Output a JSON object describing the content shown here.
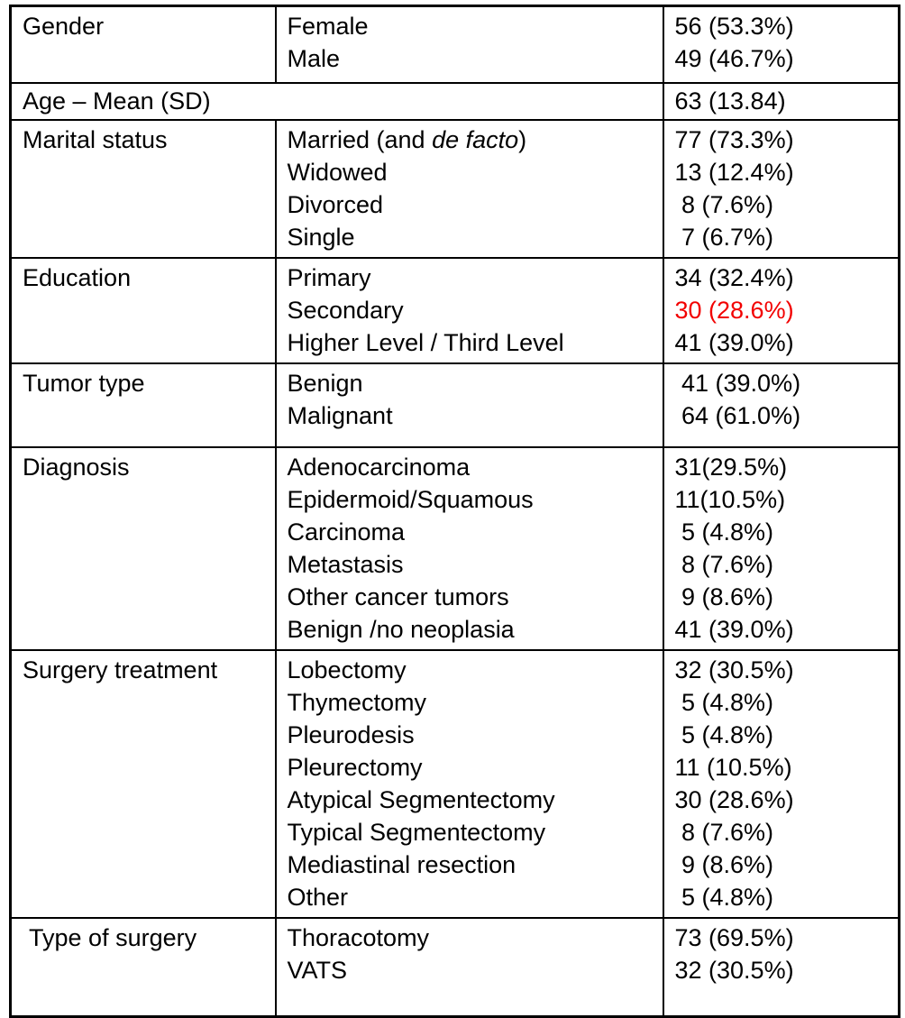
{
  "colors": {
    "border": "#000000",
    "text": "#000000",
    "highlight": "#f20000",
    "background": "#ffffff"
  },
  "table": {
    "rows": [
      {
        "category": "Gender",
        "entries": [
          {
            "label": "Female",
            "value": "56 (53.3%)"
          },
          {
            "label": "Male",
            "value": "49 (46.7%)"
          }
        ]
      },
      {
        "category": "Age – Mean (SD)",
        "span": true,
        "entries": [
          {
            "label": "",
            "value": "63 (13.84)"
          }
        ]
      },
      {
        "category": "Marital status",
        "entries": [
          {
            "label": "Married (and *de facto*)",
            "value": "77 (73.3%)"
          },
          {
            "label": "Widowed",
            "value": "13 (12.4%)"
          },
          {
            "label": "Divorced",
            "value": " 8 (7.6%)"
          },
          {
            "label": "Single",
            "value": " 7 (6.7%)"
          }
        ]
      },
      {
        "category": "Education",
        "entries": [
          {
            "label": "Primary",
            "value": "34 (32.4%)"
          },
          {
            "label": "Secondary",
            "value": "30 (28.6%)",
            "highlight": true
          },
          {
            "label": "Higher Level / Third Level",
            "value": "41 (39.0%)"
          }
        ]
      },
      {
        "category": "Tumor type",
        "entries": [
          {
            "label": "Benign",
            "value": " 41 (39.0%)"
          },
          {
            "label": "Malignant",
            "value": " 64 (61.0%)"
          }
        ]
      },
      {
        "category": "Diagnosis",
        "entries": [
          {
            "label": "Adenocarcinoma",
            "value": "31(29.5%)"
          },
          {
            "label": "Epidermoid/Squamous",
            "value": "11(10.5%)"
          },
          {
            "label": "Carcinoma",
            "value": " 5 (4.8%)"
          },
          {
            "label": "Metastasis",
            "value": " 8 (7.6%)"
          },
          {
            "label": "Other cancer tumors",
            "value": " 9 (8.6%)"
          },
          {
            "label": "Benign /no neoplasia",
            "value": "41 (39.0%)"
          }
        ]
      },
      {
        "category": "Surgery treatment",
        "entries": [
          {
            "label": "Lobectomy",
            "value": "32 (30.5%)"
          },
          {
            "label": "Thymectomy",
            "value": " 5 (4.8%)"
          },
          {
            "label": "Pleurodesis",
            "value": " 5 (4.8%)"
          },
          {
            "label": "Pleurectomy",
            "value": "11 (10.5%)"
          },
          {
            "label": "Atypical Segmentectomy",
            "value": "30 (28.6%)"
          },
          {
            "label": "Typical Segmentectomy",
            "value": " 8 (7.6%)"
          },
          {
            "label": "Mediastinal resection",
            "value": " 9 (8.6%)"
          },
          {
            "label": "Other",
            "value": " 5 (4.8%)"
          }
        ]
      },
      {
        "category": " Type of surgery",
        "entries": [
          {
            "label": "Thoracotomy",
            "value": "73 (69.5%)"
          },
          {
            "label": "VATS",
            "value": "32 (30.5%)"
          }
        ]
      }
    ]
  }
}
